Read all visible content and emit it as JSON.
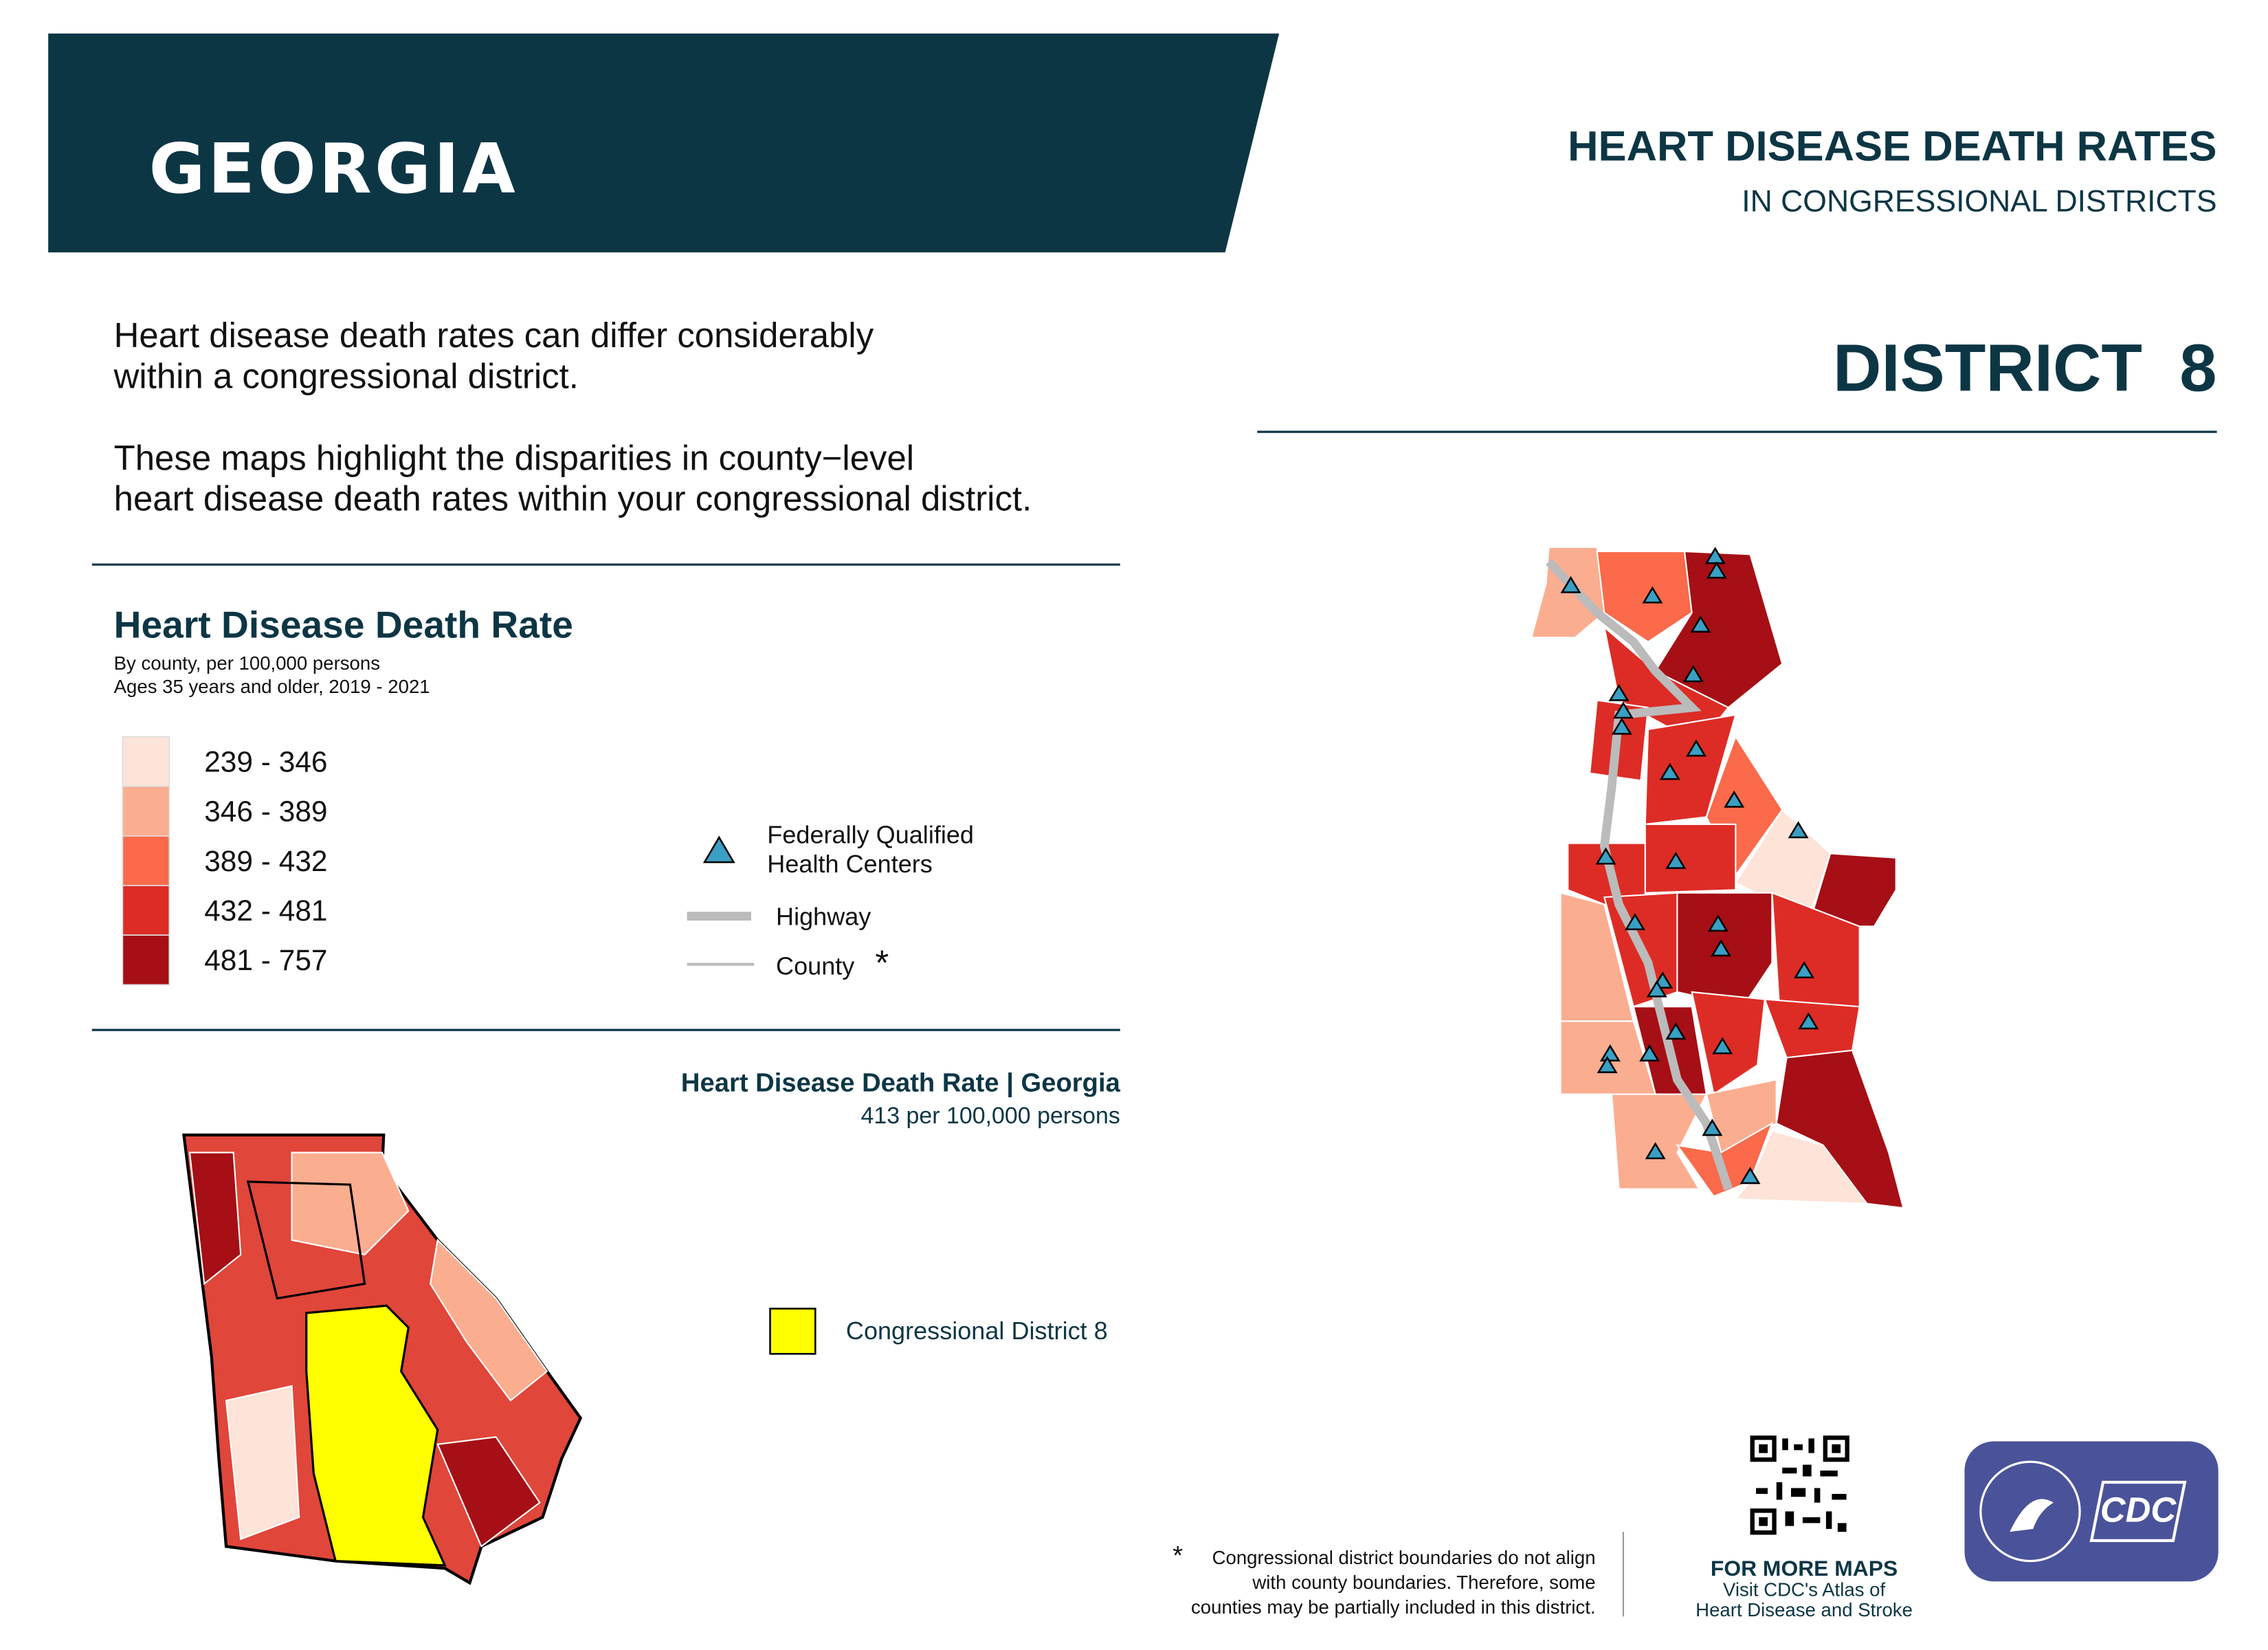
{
  "header": {
    "state": "GEORGIA",
    "title": "HEART DISEASE DEATH RATES",
    "subtitle": "IN CONGRESSIONAL DISTRICTS",
    "district": "DISTRICT  8"
  },
  "intro": {
    "paragraphs": [
      [
        "Heart disease death rates can differ considerably",
        "within a congressional district."
      ],
      [
        "These maps highlight the disparities in county−level",
        "heart disease death rates within your congressional district."
      ]
    ]
  },
  "legend": {
    "title": "Heart Disease Death Rate",
    "subtitle": [
      "By county, per 100,000 persons",
      "Ages 35 years and older, 2019 - 2021"
    ],
    "classes": [
      {
        "label": "239 - 346",
        "color": "#fde3d8"
      },
      {
        "label": "346 - 389",
        "color": "#fbad90"
      },
      {
        "label": "389 - 432",
        "color": "#fa6a4b"
      },
      {
        "label": "432 - 481",
        "color": "#dd2c26"
      },
      {
        "label": "481 - 757",
        "color": "#a50f15"
      }
    ],
    "symbols": {
      "health_centers": [
        "Federally Qualified",
        "Health Centers"
      ],
      "highway": "Highway",
      "county": "County",
      "county_note": "*"
    }
  },
  "state_rate": {
    "title": "Heart Disease Death Rate | Georgia",
    "value": "413 per 100,000 persons"
  },
  "district_legend": "Congressional District 8",
  "footnote": {
    "mark": "*",
    "lines": [
      "Congressional district boundaries do not align",
      "with county boundaries. Therefore, some",
      "counties may be partially included in this district."
    ]
  },
  "more_maps": {
    "title": "FOR MORE MAPS",
    "lines": [
      "Visit CDC's Atlas of",
      "Heart Disease and Stroke"
    ]
  },
  "logo": "CDC"
}
